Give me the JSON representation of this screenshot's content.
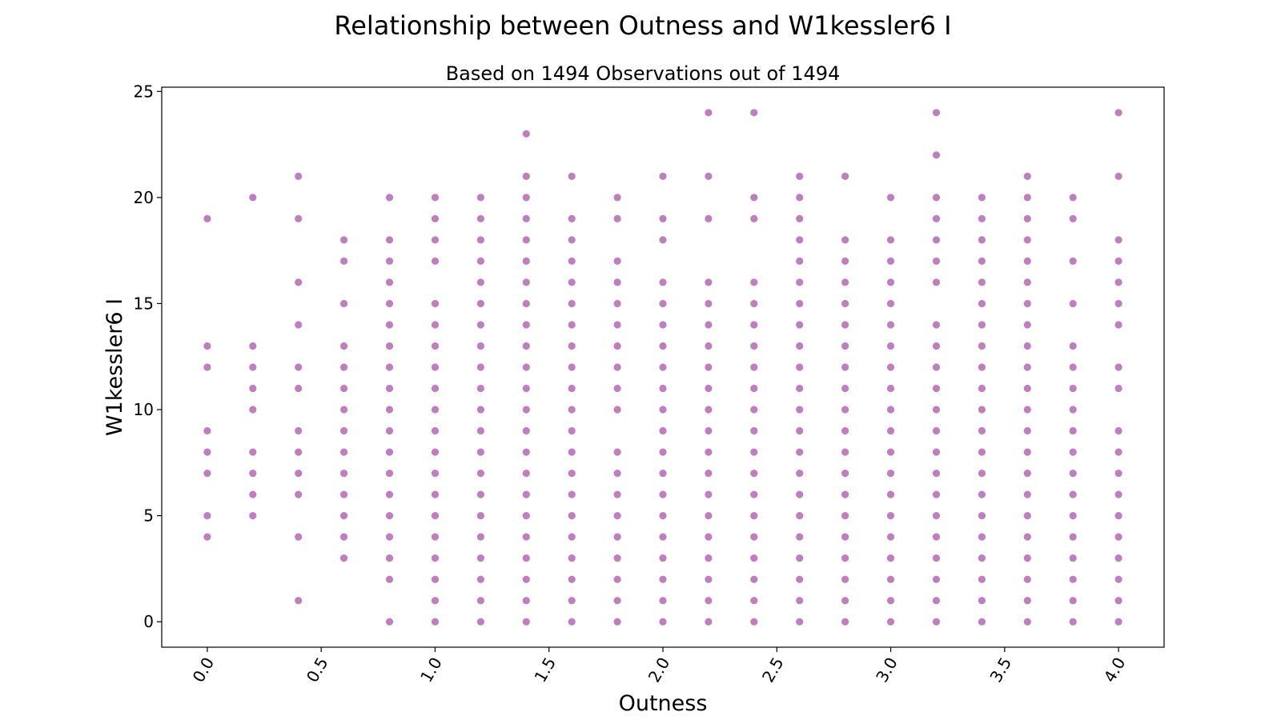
{
  "chart_data": {
    "type": "scatter",
    "title": "Relationship between Outness and W1kessler6 I",
    "subtitle": "Based on 1494 Observations out of 1494",
    "xlabel": "Outness",
    "ylabel": "W1kessler6 I",
    "xlim": [
      -0.2,
      4.2
    ],
    "ylim": [
      -1.2,
      25.2
    ],
    "xticks": [
      "0.0",
      "0.5",
      "1.0",
      "1.5",
      "2.0",
      "2.5",
      "3.0",
      "3.5",
      "4.0"
    ],
    "yticks": [
      "0",
      "5",
      "10",
      "15",
      "20",
      "25"
    ],
    "grid": false,
    "marker_color": "#800080",
    "marker_alpha": 0.5,
    "points": [
      {
        "x": 0.0,
        "y": [
          4,
          5,
          7,
          8,
          9,
          12,
          13,
          19
        ]
      },
      {
        "x": 0.2,
        "y": [
          5,
          6,
          7,
          8,
          10,
          11,
          12,
          13,
          20
        ]
      },
      {
        "x": 0.4,
        "y": [
          1,
          4,
          6,
          7,
          8,
          9,
          11,
          12,
          14,
          16,
          19,
          21
        ]
      },
      {
        "x": 0.6,
        "y": [
          3,
          4,
          5,
          6,
          7,
          8,
          9,
          10,
          11,
          12,
          13,
          15,
          17,
          18
        ]
      },
      {
        "x": 0.8,
        "y": [
          0,
          2,
          3,
          4,
          5,
          6,
          7,
          8,
          9,
          10,
          11,
          12,
          13,
          14,
          15,
          16,
          17,
          18,
          20
        ]
      },
      {
        "x": 1.0,
        "y": [
          0,
          1,
          2,
          3,
          4,
          5,
          6,
          7,
          8,
          9,
          10,
          11,
          12,
          13,
          14,
          15,
          17,
          18,
          19,
          20
        ]
      },
      {
        "x": 1.2,
        "y": [
          0,
          1,
          2,
          3,
          4,
          5,
          6,
          7,
          8,
          9,
          10,
          11,
          12,
          13,
          14,
          15,
          16,
          17,
          18,
          19,
          20
        ]
      },
      {
        "x": 1.4,
        "y": [
          0,
          1,
          2,
          3,
          4,
          5,
          6,
          7,
          8,
          9,
          10,
          11,
          12,
          13,
          14,
          15,
          16,
          17,
          18,
          19,
          20,
          21,
          23
        ]
      },
      {
        "x": 1.6,
        "y": [
          0,
          1,
          2,
          3,
          4,
          5,
          6,
          7,
          8,
          9,
          10,
          11,
          12,
          13,
          14,
          15,
          16,
          17,
          18,
          19,
          21
        ]
      },
      {
        "x": 1.8,
        "y": [
          0,
          1,
          2,
          3,
          4,
          5,
          6,
          7,
          8,
          10,
          11,
          12,
          13,
          14,
          15,
          16,
          17,
          19,
          20
        ]
      },
      {
        "x": 2.0,
        "y": [
          0,
          1,
          2,
          3,
          4,
          5,
          6,
          7,
          8,
          9,
          10,
          11,
          12,
          13,
          14,
          15,
          16,
          18,
          19,
          21
        ]
      },
      {
        "x": 2.2,
        "y": [
          0,
          1,
          2,
          3,
          4,
          5,
          6,
          7,
          8,
          9,
          10,
          11,
          12,
          13,
          14,
          15,
          16,
          19,
          21,
          24
        ]
      },
      {
        "x": 2.4,
        "y": [
          0,
          1,
          2,
          3,
          4,
          5,
          6,
          7,
          8,
          9,
          10,
          11,
          12,
          13,
          14,
          15,
          16,
          19,
          20,
          24
        ]
      },
      {
        "x": 2.6,
        "y": [
          0,
          1,
          2,
          3,
          4,
          5,
          6,
          7,
          8,
          9,
          10,
          11,
          12,
          13,
          14,
          15,
          16,
          17,
          18,
          19,
          20,
          21
        ]
      },
      {
        "x": 2.8,
        "y": [
          0,
          1,
          2,
          3,
          4,
          5,
          6,
          7,
          8,
          9,
          10,
          11,
          12,
          13,
          14,
          15,
          16,
          17,
          18,
          21
        ]
      },
      {
        "x": 3.0,
        "y": [
          0,
          1,
          2,
          3,
          4,
          5,
          6,
          7,
          8,
          9,
          10,
          11,
          12,
          13,
          14,
          15,
          16,
          17,
          18,
          20
        ]
      },
      {
        "x": 3.2,
        "y": [
          0,
          1,
          2,
          3,
          4,
          5,
          6,
          7,
          8,
          9,
          10,
          11,
          12,
          13,
          14,
          16,
          17,
          18,
          19,
          20,
          22,
          24
        ]
      },
      {
        "x": 3.4,
        "y": [
          0,
          1,
          2,
          3,
          4,
          5,
          6,
          7,
          8,
          9,
          10,
          11,
          12,
          13,
          14,
          15,
          16,
          17,
          18,
          19,
          20
        ]
      },
      {
        "x": 3.6,
        "y": [
          0,
          1,
          2,
          3,
          4,
          5,
          6,
          7,
          8,
          9,
          10,
          11,
          12,
          13,
          14,
          15,
          16,
          17,
          18,
          19,
          20,
          21
        ]
      },
      {
        "x": 3.8,
        "y": [
          0,
          1,
          2,
          3,
          4,
          5,
          6,
          7,
          8,
          9,
          10,
          11,
          12,
          13,
          15,
          17,
          19,
          20
        ]
      },
      {
        "x": 4.0,
        "y": [
          0,
          1,
          2,
          3,
          4,
          5,
          6,
          7,
          8,
          9,
          11,
          12,
          14,
          15,
          16,
          17,
          18,
          21,
          24
        ]
      }
    ]
  }
}
